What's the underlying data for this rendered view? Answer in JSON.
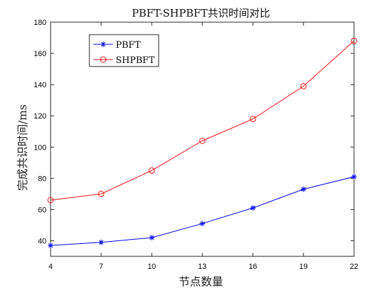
{
  "chart_data": {
    "type": "line",
    "title": "PBFT-SHPBFT共识时间对比",
    "xlabel": "节点数量",
    "ylabel": "完成共识时间/ms",
    "x": [
      4,
      7,
      10,
      13,
      16,
      19,
      22
    ],
    "xlim": [
      4,
      22
    ],
    "ylim": [
      30,
      180
    ],
    "xticks": [
      4,
      7,
      10,
      13,
      16,
      19,
      22
    ],
    "yticks": [
      40,
      60,
      80,
      100,
      120,
      140,
      160,
      180
    ],
    "grid": false,
    "legend_position": "top-left",
    "series": [
      {
        "name": "PBFT",
        "values": [
          37,
          39,
          42,
          51,
          61,
          73,
          81
        ],
        "color": "#0000ee",
        "marker": "asterisk"
      },
      {
        "name": "SHPBFT",
        "values": [
          66,
          70,
          85,
          104,
          118,
          139,
          168
        ],
        "color": "#ee1111",
        "marker": "circle"
      }
    ]
  }
}
